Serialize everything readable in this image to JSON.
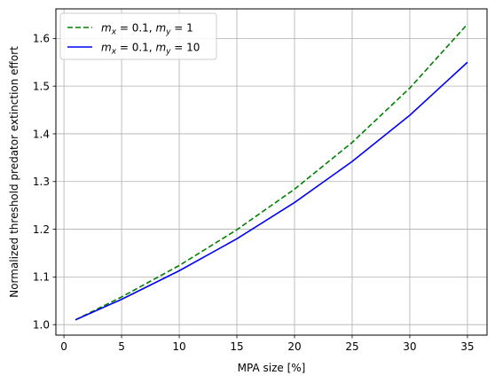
{
  "chart_data": {
    "type": "line",
    "title": "",
    "xlabel": "MPA size [%]",
    "ylabel": "Normalized threshold predator extinction effort",
    "xlim": [
      -0.7,
      36.7
    ],
    "ylim": [
      0.978,
      1.662
    ],
    "xticks": [
      0,
      5,
      10,
      15,
      20,
      25,
      30,
      35
    ],
    "yticks": [
      1.0,
      1.1,
      1.2,
      1.3,
      1.4,
      1.5,
      1.6
    ],
    "xtick_labels": [
      "0",
      "5",
      "10",
      "15",
      "20",
      "25",
      "30",
      "35"
    ],
    "ytick_labels": [
      "1.0",
      "1.1",
      "1.2",
      "1.3",
      "1.4",
      "1.5",
      "1.6"
    ],
    "grid": true,
    "legend_position": "top-left",
    "series": [
      {
        "name": "m_x = 0.1, m_y = 1",
        "legend_parts": [
          "m",
          "x",
          " = 0.1, ",
          "m",
          "y",
          " = 1"
        ],
        "color": "#008000",
        "dash": "dashed",
        "x": [
          1,
          5,
          10,
          15,
          20,
          25,
          30,
          35
        ],
        "y": [
          1.01,
          1.058,
          1.124,
          1.199,
          1.284,
          1.382,
          1.496,
          1.63
        ]
      },
      {
        "name": "m_x = 0.1, m_y = 10",
        "legend_parts": [
          "m",
          "x",
          " = 0.1, ",
          "m",
          "y",
          " = 10"
        ],
        "color": "#0000ff",
        "dash": "solid",
        "x": [
          1,
          5,
          10,
          15,
          20,
          25,
          30,
          35
        ],
        "y": [
          1.01,
          1.053,
          1.113,
          1.18,
          1.256,
          1.342,
          1.439,
          1.55
        ]
      }
    ]
  }
}
